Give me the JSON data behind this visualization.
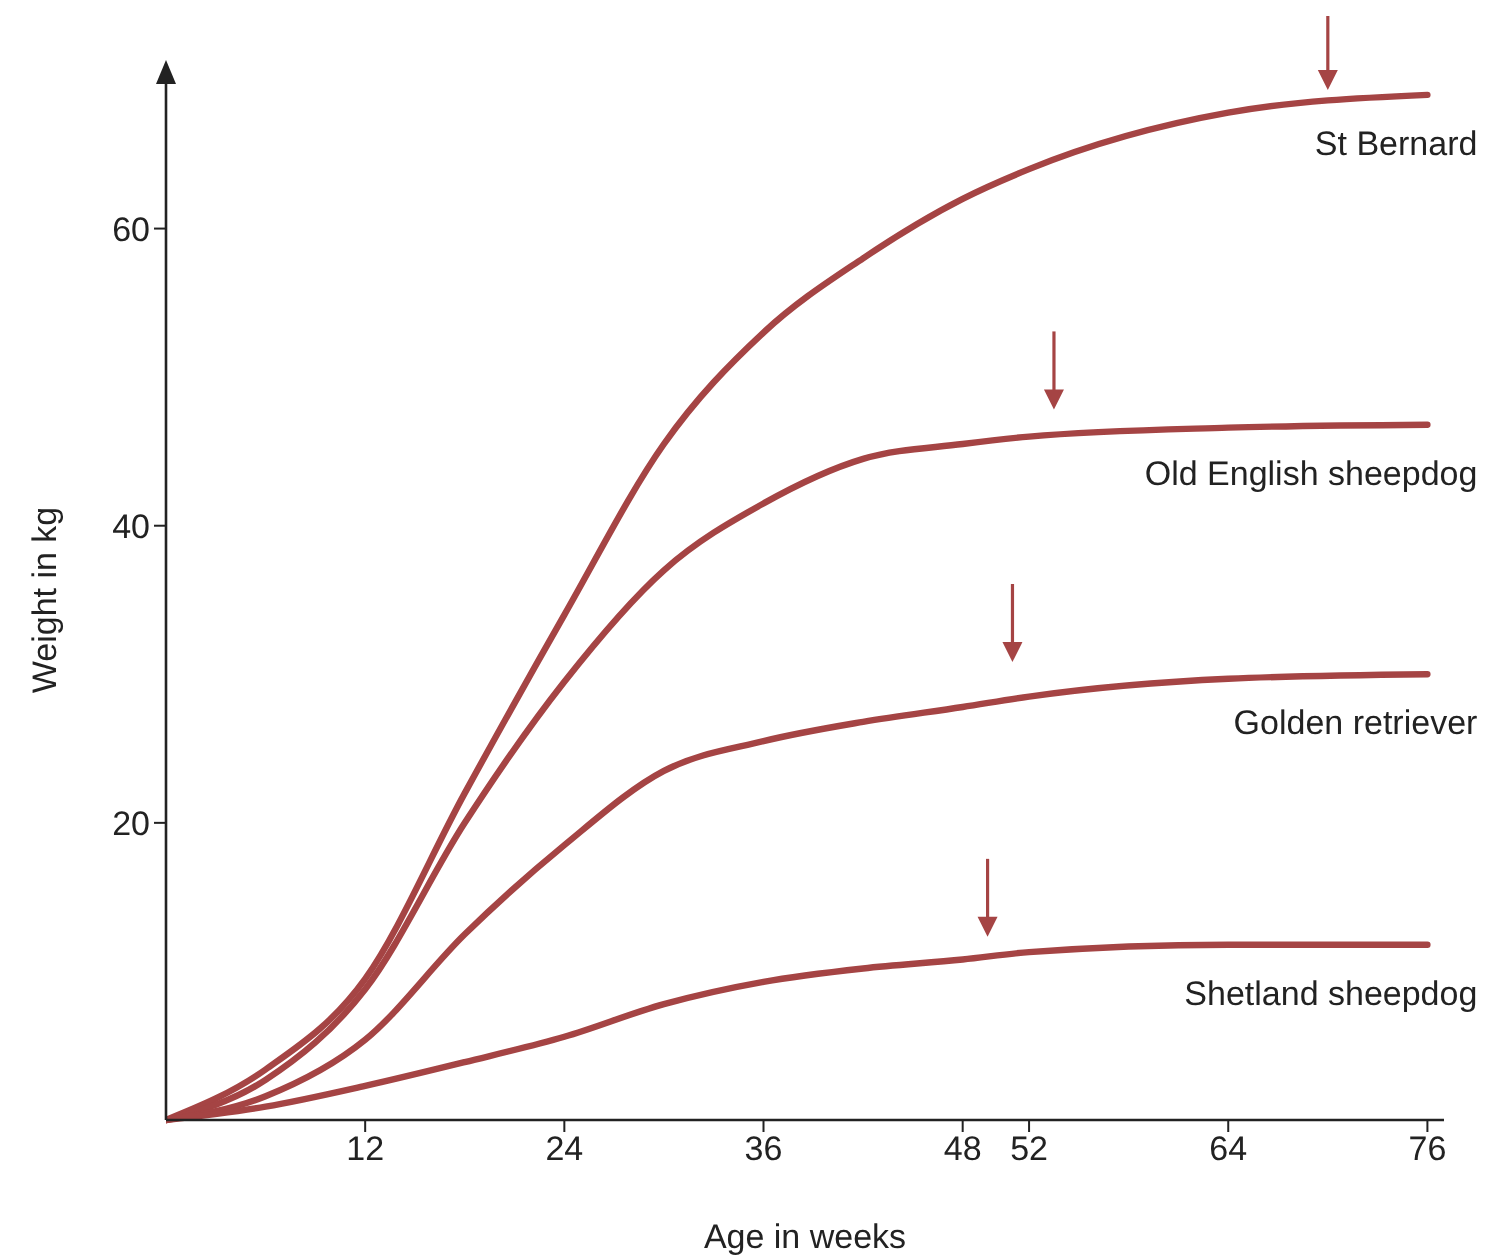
{
  "chart_data": {
    "type": "line",
    "xlabel": "Age in weeks",
    "ylabel": "Weight in kg",
    "xlim": [
      0,
      77
    ],
    "xticks": [
      12,
      24,
      36,
      48,
      52,
      64,
      76
    ],
    "ylim": [
      0,
      70
    ],
    "yticks": [
      20,
      40,
      60
    ],
    "marker": "none",
    "line_style": "solid",
    "series": [
      {
        "name": "St Bernard",
        "color": "#a54444",
        "x": [
          0,
          6,
          12,
          18,
          24,
          30,
          36,
          42,
          48,
          52,
          64,
          76
        ],
        "values": [
          0,
          3.4,
          9.5,
          22,
          34,
          45.5,
          53,
          58,
          62,
          64,
          67.8,
          69
        ]
      },
      {
        "name": "Old English sheepdog",
        "color": "#a54444",
        "x": [
          0,
          6,
          12,
          18,
          24,
          30,
          36,
          42,
          48,
          52,
          64,
          76
        ],
        "values": [
          0,
          2.7,
          8.8,
          20,
          29.5,
          37,
          41.5,
          44.5,
          45.5,
          46,
          46.6,
          46.8
        ]
      },
      {
        "name": "Golden retriever",
        "color": "#a54444",
        "x": [
          0,
          6,
          12,
          18,
          24,
          30,
          36,
          42,
          48,
          52,
          64,
          76
        ],
        "values": [
          0,
          1.6,
          5.4,
          12.5,
          18.5,
          23.5,
          25.5,
          26.8,
          27.8,
          28.5,
          29.7,
          30
        ]
      },
      {
        "name": "Shetland sheepdog",
        "color": "#a54444",
        "x": [
          0,
          6,
          12,
          18,
          24,
          30,
          36,
          42,
          48,
          52,
          64,
          76
        ],
        "values": [
          0,
          0.9,
          2.3,
          3.9,
          5.6,
          7.8,
          9.3,
          10.2,
          10.8,
          11.3,
          11.8,
          11.8
        ]
      },
      {
        "type": "scatter",
        "marker": "triangle",
        "color": "#a54444",
        "x": [
          70,
          53.5,
          51,
          49.5
        ],
        "values": [
          70,
          48.5,
          31.5,
          13
        ]
      }
    ]
  }
}
